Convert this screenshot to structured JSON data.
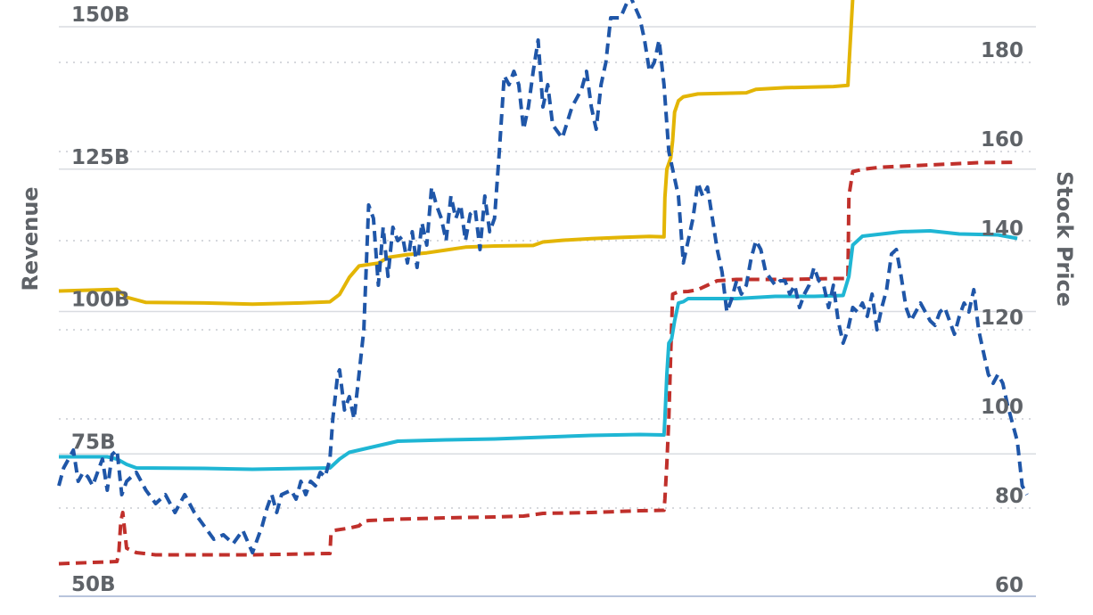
{
  "chart_data": {
    "type": "line",
    "ylabel": "Revenue",
    "y2label": "Stock Price",
    "ylim": [
      48,
      152
    ],
    "y2lim": [
      60,
      185
    ],
    "yticks": [
      "50B",
      "75B",
      "100B",
      "125B",
      "150B"
    ],
    "ytick_values": [
      50,
      75,
      100,
      125,
      150
    ],
    "y2ticks": [
      "60",
      "80",
      "100",
      "120",
      "140",
      "160",
      "180"
    ],
    "y2tick_values": [
      60,
      80,
      100,
      120,
      140,
      160,
      180
    ],
    "grid": true,
    "colors": {
      "gold": "#e3b505",
      "red": "#c0302b",
      "cyan": "#1fb6d4",
      "blue": "#1f56a8",
      "grid": "#d9dce1",
      "text": "#5f6368"
    },
    "series": [
      {
        "axis": "left",
        "color": "#e3b505",
        "dash": false,
        "values": [
          [
            0,
            103.6
          ],
          [
            0.06,
            103.9
          ],
          [
            0.07,
            102.5
          ],
          [
            0.09,
            101.6
          ],
          [
            0.15,
            101.5
          ],
          [
            0.2,
            101.3
          ],
          [
            0.25,
            101.5
          ],
          [
            0.28,
            101.7
          ],
          [
            0.29,
            103
          ],
          [
            0.3,
            106
          ],
          [
            0.31,
            108
          ],
          [
            0.33,
            108.5
          ],
          [
            0.34,
            109.5
          ],
          [
            0.36,
            110
          ],
          [
            0.38,
            110.3
          ],
          [
            0.4,
            110.8
          ],
          [
            0.42,
            111.3
          ],
          [
            0.45,
            111.5
          ],
          [
            0.49,
            111.6
          ],
          [
            0.5,
            112.2
          ],
          [
            0.52,
            112.5
          ],
          [
            0.55,
            112.8
          ],
          [
            0.58,
            113
          ],
          [
            0.61,
            113.2
          ],
          [
            0.625,
            113.1
          ],
          [
            0.626,
            120
          ],
          [
            0.628,
            125
          ],
          [
            0.63,
            126
          ],
          [
            0.632,
            127
          ],
          [
            0.634,
            130
          ],
          [
            0.636,
            135
          ],
          [
            0.64,
            137
          ],
          [
            0.645,
            137.7
          ],
          [
            0.66,
            138.2
          ],
          [
            0.71,
            138.4
          ],
          [
            0.72,
            139
          ],
          [
            0.75,
            139.3
          ],
          [
            0.8,
            139.5
          ],
          [
            0.815,
            139.7
          ],
          [
            0.816,
            143
          ],
          [
            0.82,
            155
          ]
        ]
      },
      {
        "axis": "right",
        "color": "#c0302b",
        "dash": true,
        "values": [
          [
            0,
            67.5
          ],
          [
            0.06,
            68
          ],
          [
            0.062,
            70
          ],
          [
            0.064,
            77
          ],
          [
            0.066,
            79
          ],
          [
            0.07,
            71
          ],
          [
            0.075,
            70.5
          ],
          [
            0.08,
            70
          ],
          [
            0.1,
            69.5
          ],
          [
            0.2,
            69.5
          ],
          [
            0.28,
            69.8
          ],
          [
            0.281,
            74
          ],
          [
            0.285,
            75
          ],
          [
            0.3,
            75.5
          ],
          [
            0.31,
            76
          ],
          [
            0.315,
            77
          ],
          [
            0.32,
            77.2
          ],
          [
            0.35,
            77.5
          ],
          [
            0.4,
            77.8
          ],
          [
            0.45,
            78
          ],
          [
            0.48,
            78.2
          ],
          [
            0.5,
            78.8
          ],
          [
            0.55,
            79
          ],
          [
            0.6,
            79.4
          ],
          [
            0.625,
            79.5
          ],
          [
            0.626,
            82
          ],
          [
            0.628,
            90
          ],
          [
            0.63,
            100
          ],
          [
            0.632,
            115
          ],
          [
            0.634,
            128
          ],
          [
            0.64,
            128.5
          ],
          [
            0.65,
            128.6
          ],
          [
            0.66,
            129
          ],
          [
            0.67,
            130
          ],
          [
            0.68,
            131
          ],
          [
            0.7,
            131.3
          ],
          [
            0.75,
            131.3
          ],
          [
            0.8,
            131.5
          ],
          [
            0.815,
            131.5
          ],
          [
            0.816,
            150
          ],
          [
            0.82,
            155.5
          ],
          [
            0.83,
            156
          ],
          [
            0.85,
            156.5
          ],
          [
            0.9,
            157
          ],
          [
            0.95,
            157.5
          ],
          [
            0.99,
            157.6
          ]
        ]
      },
      {
        "axis": "right",
        "color": "#1fb6d4",
        "dash": false,
        "values": [
          [
            0,
            91.5
          ],
          [
            0.05,
            91.5
          ],
          [
            0.06,
            91
          ],
          [
            0.07,
            89.8
          ],
          [
            0.08,
            89
          ],
          [
            0.15,
            88.9
          ],
          [
            0.2,
            88.7
          ],
          [
            0.28,
            89
          ],
          [
            0.29,
            91
          ],
          [
            0.3,
            92.5
          ],
          [
            0.31,
            93
          ],
          [
            0.33,
            94
          ],
          [
            0.35,
            95
          ],
          [
            0.4,
            95.3
          ],
          [
            0.45,
            95.5
          ],
          [
            0.5,
            95.9
          ],
          [
            0.55,
            96.3
          ],
          [
            0.6,
            96.5
          ],
          [
            0.625,
            96.4
          ],
          [
            0.626,
            100
          ],
          [
            0.628,
            110
          ],
          [
            0.63,
            117
          ],
          [
            0.633,
            118
          ],
          [
            0.636,
            122
          ],
          [
            0.64,
            126
          ],
          [
            0.645,
            126.3
          ],
          [
            0.65,
            127
          ],
          [
            0.7,
            127
          ],
          [
            0.74,
            127.5
          ],
          [
            0.78,
            127.5
          ],
          [
            0.81,
            127.7
          ],
          [
            0.816,
            132
          ],
          [
            0.82,
            139
          ],
          [
            0.83,
            141
          ],
          [
            0.85,
            141.5
          ],
          [
            0.87,
            142
          ],
          [
            0.9,
            142.2
          ],
          [
            0.93,
            141.5
          ],
          [
            0.97,
            141.3
          ],
          [
            0.99,
            140.5
          ]
        ]
      },
      {
        "axis": "right",
        "color": "#1f56a8",
        "dash": true,
        "values": [
          [
            0,
            85
          ],
          [
            0.005,
            89
          ],
          [
            0.01,
            91
          ],
          [
            0.015,
            93
          ],
          [
            0.02,
            86
          ],
          [
            0.025,
            88
          ],
          [
            0.03,
            87
          ],
          [
            0.035,
            85
          ],
          [
            0.04,
            88
          ],
          [
            0.045,
            91
          ],
          [
            0.05,
            84
          ],
          [
            0.055,
            92
          ],
          [
            0.06,
            93
          ],
          [
            0.065,
            83
          ],
          [
            0.07,
            86
          ],
          [
            0.075,
            87
          ],
          [
            0.08,
            88
          ],
          [
            0.085,
            86
          ],
          [
            0.09,
            84
          ],
          [
            0.1,
            81
          ],
          [
            0.11,
            83
          ],
          [
            0.12,
            79
          ],
          [
            0.13,
            83
          ],
          [
            0.14,
            79
          ],
          [
            0.15,
            76
          ],
          [
            0.16,
            73
          ],
          [
            0.17,
            74
          ],
          [
            0.18,
            72
          ],
          [
            0.19,
            75
          ],
          [
            0.2,
            70
          ],
          [
            0.21,
            76
          ],
          [
            0.215,
            80
          ],
          [
            0.22,
            83
          ],
          [
            0.225,
            79
          ],
          [
            0.23,
            83
          ],
          [
            0.24,
            84
          ],
          [
            0.245,
            82
          ],
          [
            0.25,
            86
          ],
          [
            0.255,
            83
          ],
          [
            0.26,
            86
          ],
          [
            0.265,
            85
          ],
          [
            0.27,
            88
          ],
          [
            0.275,
            87
          ],
          [
            0.28,
            91
          ],
          [
            0.283,
            100
          ],
          [
            0.288,
            110
          ],
          [
            0.29,
            111
          ],
          [
            0.295,
            102
          ],
          [
            0.3,
            105
          ],
          [
            0.305,
            100
          ],
          [
            0.31,
            110
          ],
          [
            0.315,
            120
          ],
          [
            0.32,
            148
          ],
          [
            0.325,
            145
          ],
          [
            0.33,
            130
          ],
          [
            0.335,
            143
          ],
          [
            0.34,
            132
          ],
          [
            0.345,
            143
          ],
          [
            0.35,
            140
          ],
          [
            0.355,
            141
          ],
          [
            0.36,
            135
          ],
          [
            0.365,
            142
          ],
          [
            0.37,
            134
          ],
          [
            0.375,
            144
          ],
          [
            0.38,
            139
          ],
          [
            0.385,
            152
          ],
          [
            0.39,
            148
          ],
          [
            0.395,
            145
          ],
          [
            0.4,
            140
          ],
          [
            0.405,
            150
          ],
          [
            0.41,
            145
          ],
          [
            0.415,
            148
          ],
          [
            0.42,
            140
          ],
          [
            0.425,
            146
          ],
          [
            0.43,
            147
          ],
          [
            0.435,
            138
          ],
          [
            0.44,
            150
          ],
          [
            0.445,
            142
          ],
          [
            0.45,
            145
          ],
          [
            0.455,
            160
          ],
          [
            0.46,
            177
          ],
          [
            0.465,
            175
          ],
          [
            0.47,
            178
          ],
          [
            0.475,
            175
          ],
          [
            0.48,
            165
          ],
          [
            0.485,
            170
          ],
          [
            0.49,
            178
          ],
          [
            0.495,
            185
          ],
          [
            0.5,
            170
          ],
          [
            0.505,
            175
          ],
          [
            0.51,
            166
          ],
          [
            0.52,
            163
          ],
          [
            0.53,
            170
          ],
          [
            0.54,
            174
          ],
          [
            0.545,
            178
          ],
          [
            0.55,
            170
          ],
          [
            0.555,
            165
          ],
          [
            0.56,
            175
          ],
          [
            0.565,
            180
          ],
          [
            0.57,
            190
          ],
          [
            0.58,
            190
          ],
          [
            0.59,
            195
          ],
          [
            0.6,
            190
          ],
          [
            0.605,
            185
          ],
          [
            0.61,
            178
          ],
          [
            0.615,
            180
          ],
          [
            0.62,
            185
          ],
          [
            0.625,
            175
          ],
          [
            0.63,
            160
          ],
          [
            0.64,
            150
          ],
          [
            0.645,
            135
          ],
          [
            0.65,
            140
          ],
          [
            0.655,
            145
          ],
          [
            0.66,
            153
          ],
          [
            0.665,
            150
          ],
          [
            0.67,
            152
          ],
          [
            0.675,
            145
          ],
          [
            0.68,
            138
          ],
          [
            0.685,
            133
          ],
          [
            0.69,
            124
          ],
          [
            0.695,
            127
          ],
          [
            0.7,
            131
          ],
          [
            0.705,
            128
          ],
          [
            0.71,
            130
          ],
          [
            0.715,
            136
          ],
          [
            0.72,
            140
          ],
          [
            0.725,
            138
          ],
          [
            0.73,
            133
          ],
          [
            0.74,
            130
          ],
          [
            0.745,
            131
          ],
          [
            0.75,
            131
          ],
          [
            0.755,
            128
          ],
          [
            0.76,
            130
          ],
          [
            0.765,
            125
          ],
          [
            0.77,
            128
          ],
          [
            0.775,
            130
          ],
          [
            0.78,
            134
          ],
          [
            0.785,
            131
          ],
          [
            0.79,
            130
          ],
          [
            0.795,
            125
          ],
          [
            0.8,
            130
          ],
          [
            0.805,
            122
          ],
          [
            0.81,
            117
          ],
          [
            0.815,
            120
          ],
          [
            0.82,
            125
          ],
          [
            0.825,
            124
          ],
          [
            0.83,
            126
          ],
          [
            0.835,
            123
          ],
          [
            0.84,
            128
          ],
          [
            0.845,
            120
          ],
          [
            0.85,
            125
          ],
          [
            0.855,
            129
          ],
          [
            0.86,
            137
          ],
          [
            0.865,
            138
          ],
          [
            0.87,
            132
          ],
          [
            0.875,
            125
          ],
          [
            0.88,
            122
          ],
          [
            0.89,
            126
          ],
          [
            0.9,
            122
          ],
          [
            0.905,
            121
          ],
          [
            0.91,
            124
          ],
          [
            0.915,
            125
          ],
          [
            0.92,
            122
          ],
          [
            0.925,
            119
          ],
          [
            0.93,
            123
          ],
          [
            0.935,
            126
          ],
          [
            0.94,
            124
          ],
          [
            0.945,
            129
          ],
          [
            0.95,
            120
          ],
          [
            0.955,
            115
          ],
          [
            0.96,
            110
          ],
          [
            0.965,
            108
          ],
          [
            0.97,
            110
          ],
          [
            0.975,
            108
          ],
          [
            0.98,
            103
          ],
          [
            0.985,
            99
          ],
          [
            0.99,
            95
          ],
          [
            0.995,
            85
          ],
          [
            1.0,
            83
          ]
        ]
      }
    ]
  }
}
